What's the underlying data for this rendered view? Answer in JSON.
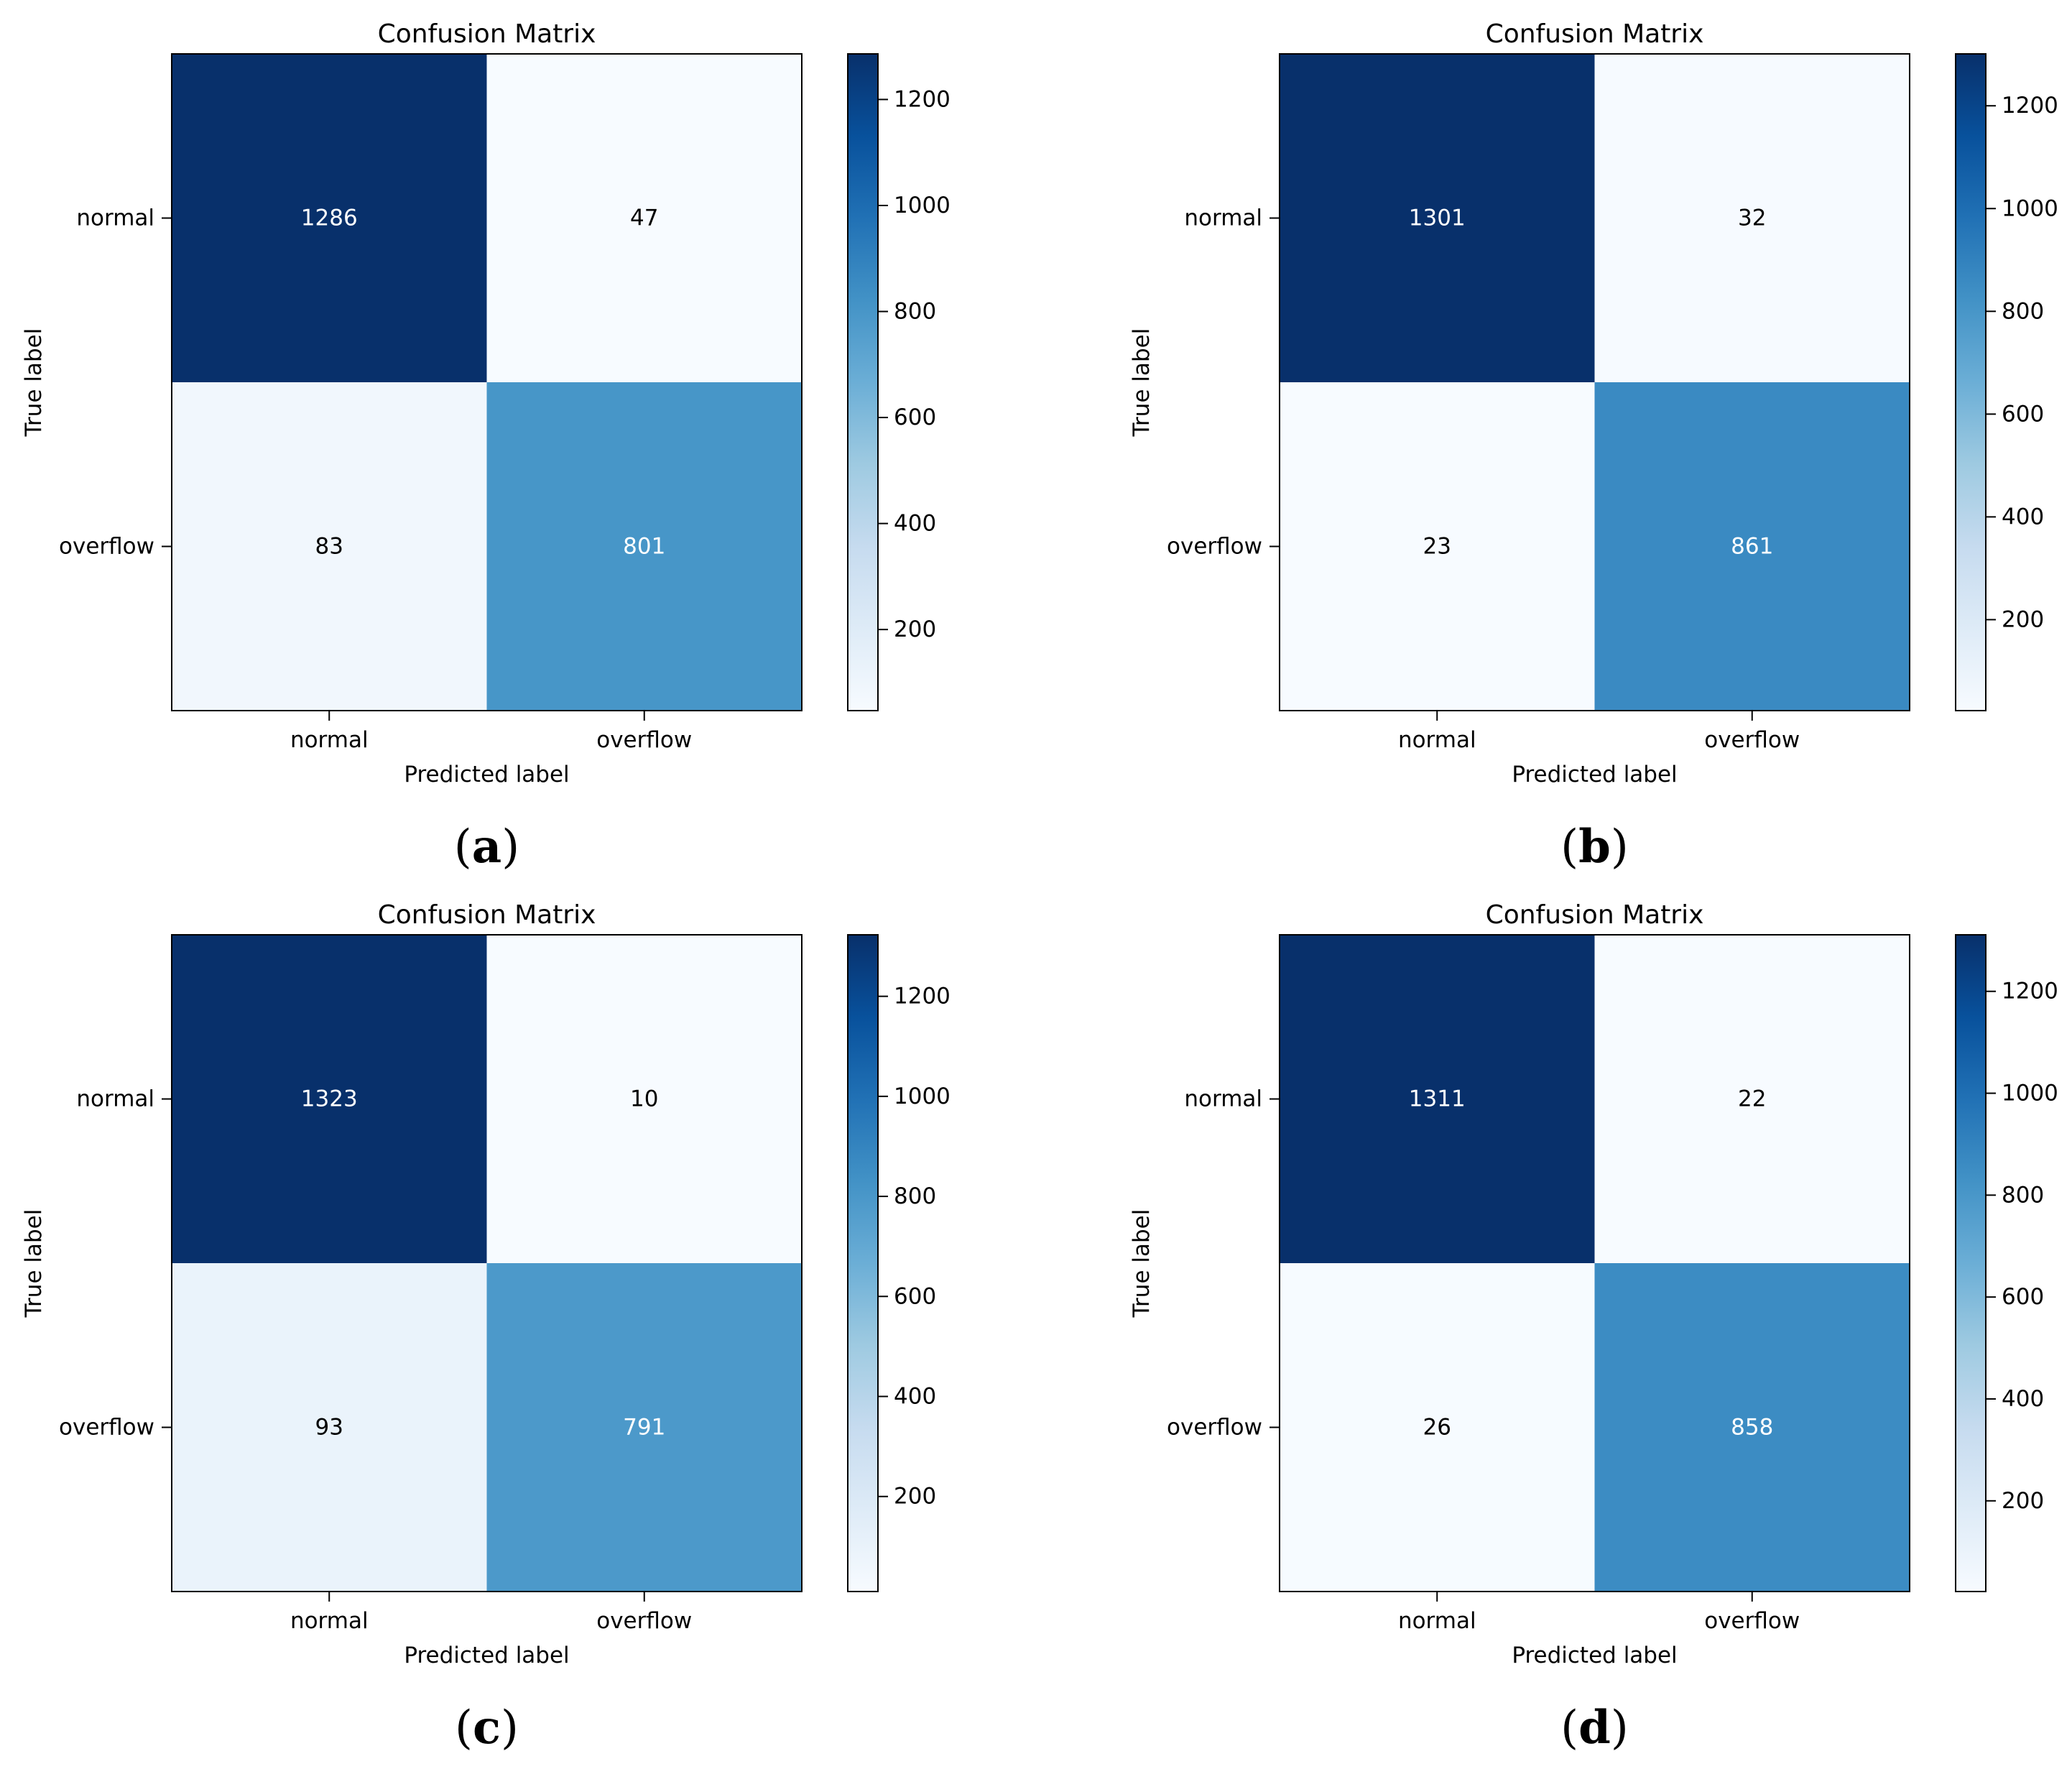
{
  "chart_data": [
    {
      "type": "heatmap",
      "panel_label": "a",
      "title": "Confusion Matrix",
      "xlabel": "Predicted label",
      "ylabel": "True label",
      "x_categories": [
        "normal",
        "overflow"
      ],
      "y_categories": [
        "normal",
        "overflow"
      ],
      "values": [
        [
          1286,
          47
        ],
        [
          83,
          801
        ]
      ],
      "colormap": "Blues",
      "colorbar_ticks": [
        200,
        400,
        600,
        800,
        1000,
        1200
      ],
      "color_range": [
        47,
        1286
      ]
    },
    {
      "type": "heatmap",
      "panel_label": "b",
      "title": "Confusion Matrix",
      "xlabel": "Predicted label",
      "ylabel": "True label",
      "x_categories": [
        "normal",
        "overflow"
      ],
      "y_categories": [
        "normal",
        "overflow"
      ],
      "values": [
        [
          1301,
          32
        ],
        [
          23,
          861
        ]
      ],
      "colormap": "Blues",
      "colorbar_ticks": [
        200,
        400,
        600,
        800,
        1000,
        1200
      ],
      "color_range": [
        23,
        1301
      ]
    },
    {
      "type": "heatmap",
      "panel_label": "c",
      "title": "Confusion Matrix",
      "xlabel": "Predicted label",
      "ylabel": "True label",
      "x_categories": [
        "normal",
        "overflow"
      ],
      "y_categories": [
        "normal",
        "overflow"
      ],
      "values": [
        [
          1323,
          10
        ],
        [
          93,
          791
        ]
      ],
      "colormap": "Blues",
      "colorbar_ticks": [
        200,
        400,
        600,
        800,
        1000,
        1200
      ],
      "color_range": [
        10,
        1323
      ]
    },
    {
      "type": "heatmap",
      "panel_label": "d",
      "title": "Confusion Matrix",
      "xlabel": "Predicted label",
      "ylabel": "True label",
      "x_categories": [
        "normal",
        "overflow"
      ],
      "y_categories": [
        "normal",
        "overflow"
      ],
      "values": [
        [
          1311,
          22
        ],
        [
          26,
          858
        ]
      ],
      "colormap": "Blues",
      "colorbar_ticks": [
        200,
        400,
        600,
        800,
        1000,
        1200
      ],
      "color_range": [
        22,
        1311
      ]
    }
  ],
  "colors": {
    "blues_stops": [
      "#f7fbff",
      "#deebf7",
      "#c6dbef",
      "#9ecae1",
      "#6baed6",
      "#4292c6",
      "#2171b5",
      "#08519c",
      "#08306b"
    ],
    "text_dark": "#000000",
    "text_light": "#ffffff"
  }
}
